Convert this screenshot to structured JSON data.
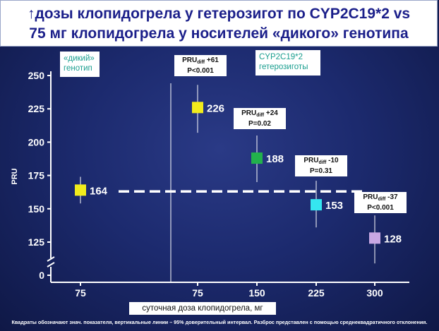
{
  "title": {
    "line1": "↑дозы клопидогрела у гетерозигот по CYP2C19*2 vs",
    "line2": "75 мг клопидогрела у носителей «дикого» генотипа"
  },
  "groups": {
    "wild": "«дикий» генотип",
    "hetero": "CYP2C19*2 гетерозиготы"
  },
  "stats": [
    {
      "prefix": "PRU",
      "sub": "diff",
      "diff": " +61",
      "p": "P<0.001"
    },
    {
      "prefix": "PRU",
      "sub": "diff",
      "diff": " +24",
      "p": "P=0.02"
    },
    {
      "prefix": "PRU",
      "sub": "diff",
      "diff": " -10",
      "p": "P=0.31"
    },
    {
      "prefix": "PRU",
      "sub": "diff",
      "diff": " -37",
      "p": "P<0.001"
    }
  ],
  "footnote": "Квадраты обозначают знач. показателя, вертикальные линии – 95% доверительный интервал. Разброс представлен с помощью среднеквадратичного отклонения.",
  "chart_data": {
    "type": "scatter",
    "title": "",
    "xlabel": "суточная доза клопидогрела, мг",
    "ylabel": "PRU",
    "ylim": [
      0,
      250
    ],
    "yticks": [
      0,
      125,
      150,
      175,
      200,
      225,
      250
    ],
    "x_categories": [
      "75",
      "75",
      "150",
      "225",
      "300"
    ],
    "reference_line": 163,
    "points": [
      {
        "label": "164",
        "x": "75",
        "y": 164,
        "ci": [
          154,
          174
        ],
        "color": "#f2ec1c"
      },
      {
        "label": "226",
        "x": "75",
        "y": 226,
        "ci": [
          207,
          243
        ],
        "color": "#f2ec1c"
      },
      {
        "label": "188",
        "x": "150",
        "y": 188,
        "ci": [
          170,
          205
        ],
        "color": "#22b24c"
      },
      {
        "label": "153",
        "x": "225",
        "y": 153,
        "ci": [
          136,
          171
        ],
        "color": "#35e6f0"
      },
      {
        "label": "128",
        "x": "300",
        "y": 128,
        "ci": [
          109,
          145
        ],
        "color": "#c9a8e4"
      }
    ]
  }
}
